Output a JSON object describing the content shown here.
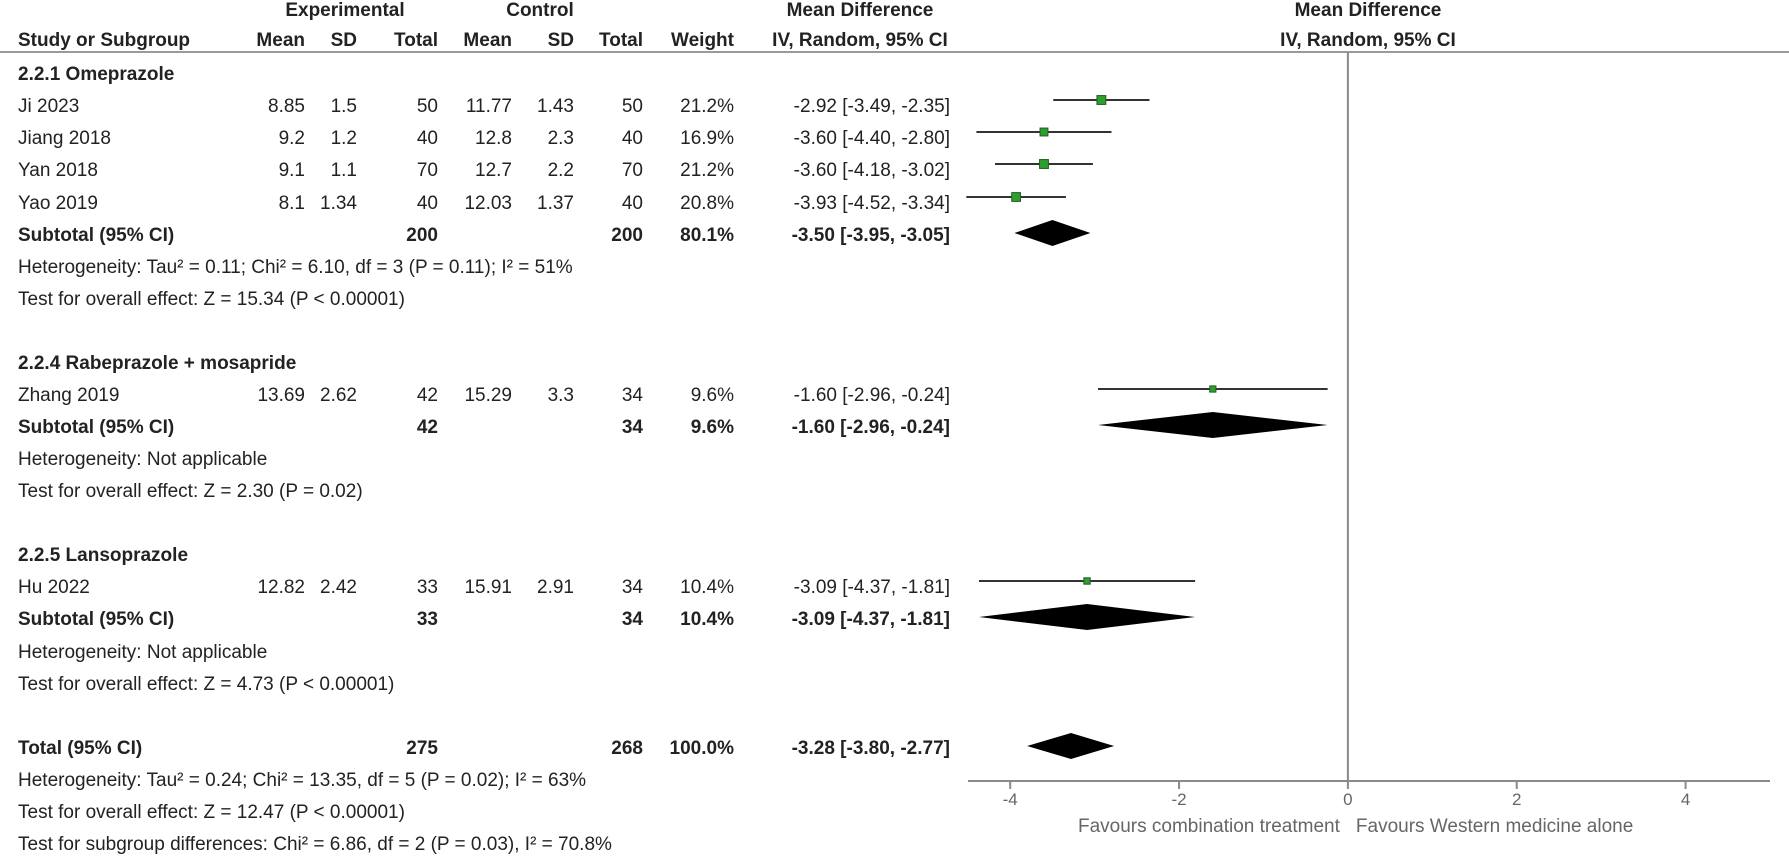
{
  "header": {
    "experimental": "Experimental",
    "control": "Control",
    "md_left": "Mean Difference",
    "md_right": "Mean Difference",
    "cols": {
      "study": "Study or Subgroup",
      "e_mean": "Mean",
      "e_sd": "SD",
      "e_total": "Total",
      "c_mean": "Mean",
      "c_sd": "SD",
      "c_total": "Total",
      "weight": "Weight",
      "md_method_left": "IV, Random, 95% CI",
      "md_method_right": "IV, Random, 95% CI"
    }
  },
  "groups": [
    {
      "title": "2.2.1 Omeprazole",
      "studies": [
        {
          "name": "Ji 2023",
          "e_mean": "8.85",
          "e_sd": "1.5",
          "e_total": "50",
          "c_mean": "11.77",
          "c_sd": "1.43",
          "c_total": "50",
          "weight": "21.2%",
          "ci": "-2.92 [-3.49, -2.35]"
        },
        {
          "name": "Jiang 2018",
          "e_mean": "9.2",
          "e_sd": "1.2",
          "e_total": "40",
          "c_mean": "12.8",
          "c_sd": "2.3",
          "c_total": "40",
          "weight": "16.9%",
          "ci": "-3.60 [-4.40, -2.80]"
        },
        {
          "name": "Yan 2018",
          "e_mean": "9.1",
          "e_sd": "1.1",
          "e_total": "70",
          "c_mean": "12.7",
          "c_sd": "2.2",
          "c_total": "70",
          "weight": "21.2%",
          "ci": "-3.60 [-4.18, -3.02]"
        },
        {
          "name": "Yao 2019",
          "e_mean": "8.1",
          "e_sd": "1.34",
          "e_total": "40",
          "c_mean": "12.03",
          "c_sd": "1.37",
          "c_total": "40",
          "weight": "20.8%",
          "ci": "-3.93 [-4.52, -3.34]"
        }
      ],
      "subtotal": {
        "label": "Subtotal (95% CI)",
        "e_total": "200",
        "c_total": "200",
        "weight": "80.1%",
        "ci": "-3.50 [-3.95, -3.05]"
      },
      "heterogeneity": "Heterogeneity: Tau² = 0.11; Chi² = 6.10, df = 3 (P = 0.11); I² = 51%",
      "overall": "Test for overall effect: Z = 15.34 (P < 0.00001)"
    },
    {
      "title": "2.2.4 Rabeprazole + mosapride",
      "studies": [
        {
          "name": "Zhang 2019",
          "e_mean": "13.69",
          "e_sd": "2.62",
          "e_total": "42",
          "c_mean": "15.29",
          "c_sd": "3.3",
          "c_total": "34",
          "weight": "9.6%",
          "ci": "-1.60 [-2.96, -0.24]"
        }
      ],
      "subtotal": {
        "label": "Subtotal (95% CI)",
        "e_total": "42",
        "c_total": "34",
        "weight": "9.6%",
        "ci": "-1.60 [-2.96, -0.24]"
      },
      "heterogeneity": "Heterogeneity: Not applicable",
      "overall": "Test for overall effect: Z = 2.30 (P = 0.02)"
    },
    {
      "title": "2.2.5 Lansoprazole",
      "studies": [
        {
          "name": "Hu 2022",
          "e_mean": "12.82",
          "e_sd": "2.42",
          "e_total": "33",
          "c_mean": "15.91",
          "c_sd": "2.91",
          "c_total": "34",
          "weight": "10.4%",
          "ci": "-3.09 [-4.37, -1.81]"
        }
      ],
      "subtotal": {
        "label": "Subtotal (95% CI)",
        "e_total": "33",
        "c_total": "34",
        "weight": "10.4%",
        "ci": "-3.09 [-4.37, -1.81]"
      },
      "heterogeneity": "Heterogeneity: Not applicable",
      "overall": "Test for overall effect: Z = 4.73 (P < 0.00001)"
    }
  ],
  "total": {
    "label": "Total (95% CI)",
    "e_total": "275",
    "c_total": "268",
    "weight": "100.0%",
    "ci": "-3.28 [-3.80, -2.77]"
  },
  "footer": {
    "heterogeneity": "Heterogeneity: Tau² = 0.24; Chi² = 13.35, df = 5 (P = 0.02); I² = 63%",
    "overall": "Test for overall effect: Z = 12.47 (P < 0.00001)",
    "subgroup": "Test for subgroup differences: Chi² = 6.86, df = 2 (P = 0.03), I² = 70.8%"
  },
  "axis_labels": {
    "favours_left": "Favours combination treatment",
    "favours_right": "Favours Western medicine alone"
  },
  "colors": {
    "marker": "#2e9e2e",
    "diamond": "#000000",
    "line": "#333333",
    "axis": "#8a8a8a"
  },
  "chart_data": {
    "type": "scatter",
    "title": "",
    "xlabel": "",
    "ylabel": "",
    "xlim": [
      -4.5,
      5
    ],
    "xticks": [
      -4,
      -2,
      0,
      2,
      4
    ],
    "reference_line": 0,
    "studies": [
      {
        "name": "Ji 2023",
        "md": -2.92,
        "lo": -3.49,
        "hi": -2.35,
        "weight": 21.2
      },
      {
        "name": "Jiang 2018",
        "md": -3.6,
        "lo": -4.4,
        "hi": -2.8,
        "weight": 16.9
      },
      {
        "name": "Yan 2018",
        "md": -3.6,
        "lo": -4.18,
        "hi": -3.02,
        "weight": 21.2
      },
      {
        "name": "Yao 2019",
        "md": -3.93,
        "lo": -4.52,
        "hi": -3.34,
        "weight": 20.8
      },
      {
        "name": "Zhang 2019",
        "md": -1.6,
        "lo": -2.96,
        "hi": -0.24,
        "weight": 9.6
      },
      {
        "name": "Hu 2022",
        "md": -3.09,
        "lo": -4.37,
        "hi": -1.81,
        "weight": 10.4
      }
    ],
    "diamonds": [
      {
        "name": "Subtotal 2.2.1",
        "md": -3.5,
        "lo": -3.95,
        "hi": -3.05
      },
      {
        "name": "Subtotal 2.2.4",
        "md": -1.6,
        "lo": -2.96,
        "hi": -0.24
      },
      {
        "name": "Subtotal 2.2.5",
        "md": -3.09,
        "lo": -4.37,
        "hi": -1.81
      },
      {
        "name": "Total",
        "md": -3.28,
        "lo": -3.8,
        "hi": -2.77
      }
    ]
  }
}
